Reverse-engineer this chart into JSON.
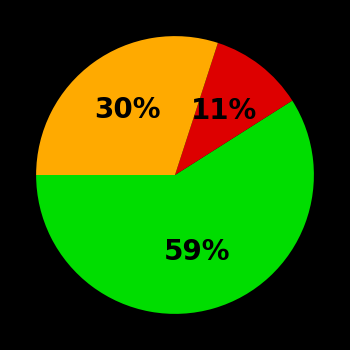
{
  "slices": [
    59,
    11,
    30
  ],
  "colors": [
    "#00dd00",
    "#dd0000",
    "#ffaa00"
  ],
  "labels": [
    "59%",
    "11%",
    "30%"
  ],
  "label_radii": [
    0.58,
    0.58,
    0.58
  ],
  "background_color": "#000000",
  "text_color": "#000000",
  "startangle": 180,
  "counterclock": true,
  "figsize": [
    3.5,
    3.5
  ],
  "dpi": 100,
  "font_size": 20,
  "font_weight": "bold"
}
